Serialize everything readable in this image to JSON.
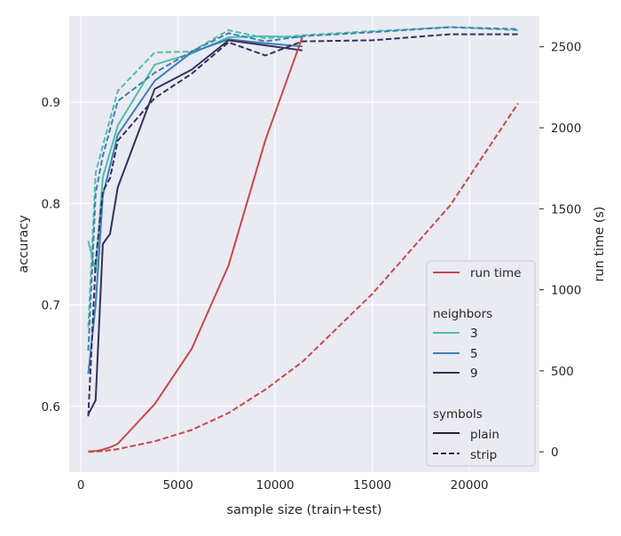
{
  "chart_data": {
    "type": "line",
    "xlabel": "sample size (train+test)",
    "ylabel_left": "accuracy",
    "ylabel_right": "run time (s)",
    "xlim": [
      -600,
      23600
    ],
    "ylim_left": [
      0.535,
      0.985
    ],
    "ylim_right": [
      -125,
      2690
    ],
    "xticks": [
      0,
      5000,
      10000,
      15000,
      20000
    ],
    "yticks_left": [
      0.6,
      0.7,
      0.8,
      0.9
    ],
    "yticks_right": [
      0,
      500,
      1000,
      1500,
      2000,
      2500
    ],
    "grid": true,
    "legend_position": "lower-right",
    "colors": {
      "3": "#4dbfaa",
      "5": "#3f7fb5",
      "9": "#35305e",
      "runtime": "#c84848",
      "legend_line": "#262626"
    },
    "accuracy_series": [
      {
        "neighbors": "3",
        "symbol": "plain",
        "x": [
          380,
          760,
          1130,
          1900,
          3800,
          5700,
          7600,
          9500,
          11400
        ],
        "y": [
          0.763,
          0.733,
          0.826,
          0.877,
          0.937,
          0.948,
          0.964,
          0.965,
          0.964
        ]
      },
      {
        "neighbors": "3",
        "symbol": "strip",
        "x": [
          380,
          760,
          1130,
          1900,
          3800,
          5700,
          7600,
          9500,
          11400,
          15000,
          19000,
          22500
        ],
        "y": [
          0.678,
          0.83,
          0.857,
          0.911,
          0.949,
          0.95,
          0.971,
          0.963,
          0.966,
          0.97,
          0.974,
          0.971
        ]
      },
      {
        "neighbors": "5",
        "symbol": "plain",
        "x": [
          380,
          760,
          1130,
          1900,
          3800,
          5700,
          7600,
          9500,
          11400
        ],
        "y": [
          0.632,
          0.7,
          0.808,
          0.868,
          0.921,
          0.949,
          0.962,
          0.958,
          0.955
        ]
      },
      {
        "neighbors": "5",
        "symbol": "strip",
        "x": [
          380,
          760,
          1130,
          1900,
          3800,
          5700,
          7600,
          9500,
          11400,
          15000,
          19000,
          22500
        ],
        "y": [
          0.655,
          0.81,
          0.847,
          0.901,
          0.929,
          0.95,
          0.968,
          0.96,
          0.965,
          0.969,
          0.974,
          0.972
        ]
      },
      {
        "neighbors": "9",
        "symbol": "plain",
        "x": [
          380,
          760,
          1130,
          1500,
          1900,
          3800,
          5700,
          7600,
          9500,
          11400
        ],
        "y": [
          0.592,
          0.606,
          0.76,
          0.77,
          0.816,
          0.913,
          0.932,
          0.961,
          0.956,
          0.951
        ]
      },
      {
        "neighbors": "9",
        "symbol": "strip",
        "x": [
          380,
          760,
          1130,
          1500,
          1900,
          3800,
          5700,
          7600,
          9500,
          11400,
          15000,
          19000,
          22500
        ],
        "y": [
          0.59,
          0.742,
          0.812,
          0.825,
          0.862,
          0.904,
          0.928,
          0.959,
          0.946,
          0.96,
          0.961,
          0.967,
          0.967
        ]
      }
    ],
    "runtime_series": [
      {
        "symbol": "plain",
        "x": [
          380,
          760,
          1130,
          1500,
          1900,
          3800,
          5700,
          7600,
          9500,
          11400
        ],
        "y": [
          3,
          5,
          14,
          28,
          50,
          295,
          635,
          1150,
          1925,
          2560
        ]
      },
      {
        "symbol": "strip",
        "x": [
          380,
          760,
          1130,
          1900,
          3800,
          5700,
          7600,
          9500,
          11400,
          15000,
          19000,
          22500
        ],
        "y": [
          0,
          2,
          5,
          17,
          65,
          135,
          240,
          385,
          555,
          975,
          1520,
          2150
        ]
      }
    ],
    "legend": {
      "runtime_label": "run time",
      "neighbors_title": "neighbors",
      "neighbors_labels": [
        "3",
        "5",
        "9"
      ],
      "symbols_title": "symbols",
      "symbols_labels": [
        "plain",
        "strip"
      ]
    }
  }
}
